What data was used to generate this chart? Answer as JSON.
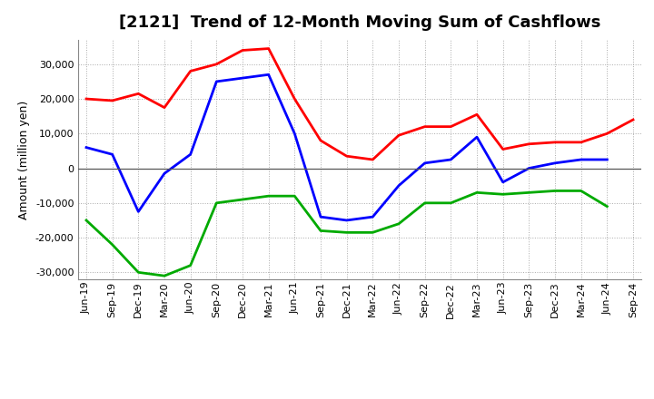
{
  "title": "[2121]  Trend of 12-Month Moving Sum of Cashflows",
  "ylabel": "Amount (million yen)",
  "xlabels": [
    "Jun-19",
    "Sep-19",
    "Dec-19",
    "Mar-20",
    "Jun-20",
    "Sep-20",
    "Dec-20",
    "Mar-21",
    "Jun-21",
    "Sep-21",
    "Dec-21",
    "Mar-22",
    "Jun-22",
    "Sep-22",
    "Dec-22",
    "Mar-23",
    "Jun-23",
    "Sep-23",
    "Dec-23",
    "Mar-24",
    "Jun-24",
    "Sep-24"
  ],
  "operating": [
    20000,
    19500,
    21500,
    17500,
    28000,
    30000,
    34000,
    34500,
    20000,
    8000,
    3500,
    2500,
    9500,
    12000,
    12000,
    15500,
    5500,
    7000,
    7500,
    7500,
    10000,
    14000
  ],
  "investing": [
    -15000,
    -22000,
    -30000,
    -31000,
    -28000,
    -10000,
    -9000,
    -8000,
    -8000,
    -18000,
    -18500,
    -18500,
    -16000,
    -10000,
    -10000,
    -7000,
    -7500,
    -7000,
    -6500,
    -6500,
    -11000,
    null
  ],
  "free": [
    6000,
    4000,
    -12500,
    -1500,
    4000,
    25000,
    26000,
    27000,
    10000,
    -14000,
    -15000,
    -14000,
    -5000,
    1500,
    2500,
    9000,
    -4000,
    0,
    1500,
    2500,
    2500,
    null
  ],
  "ylim": [
    -32000,
    37000
  ],
  "yticks": [
    -30000,
    -20000,
    -10000,
    0,
    10000,
    20000,
    30000
  ],
  "operating_color": "#ff0000",
  "investing_color": "#00aa00",
  "free_color": "#0000ff",
  "background_color": "#ffffff",
  "grid_color": "#aaaaaa",
  "title_fontsize": 13,
  "axis_fontsize": 8,
  "ylabel_fontsize": 9,
  "line_width": 2.0
}
